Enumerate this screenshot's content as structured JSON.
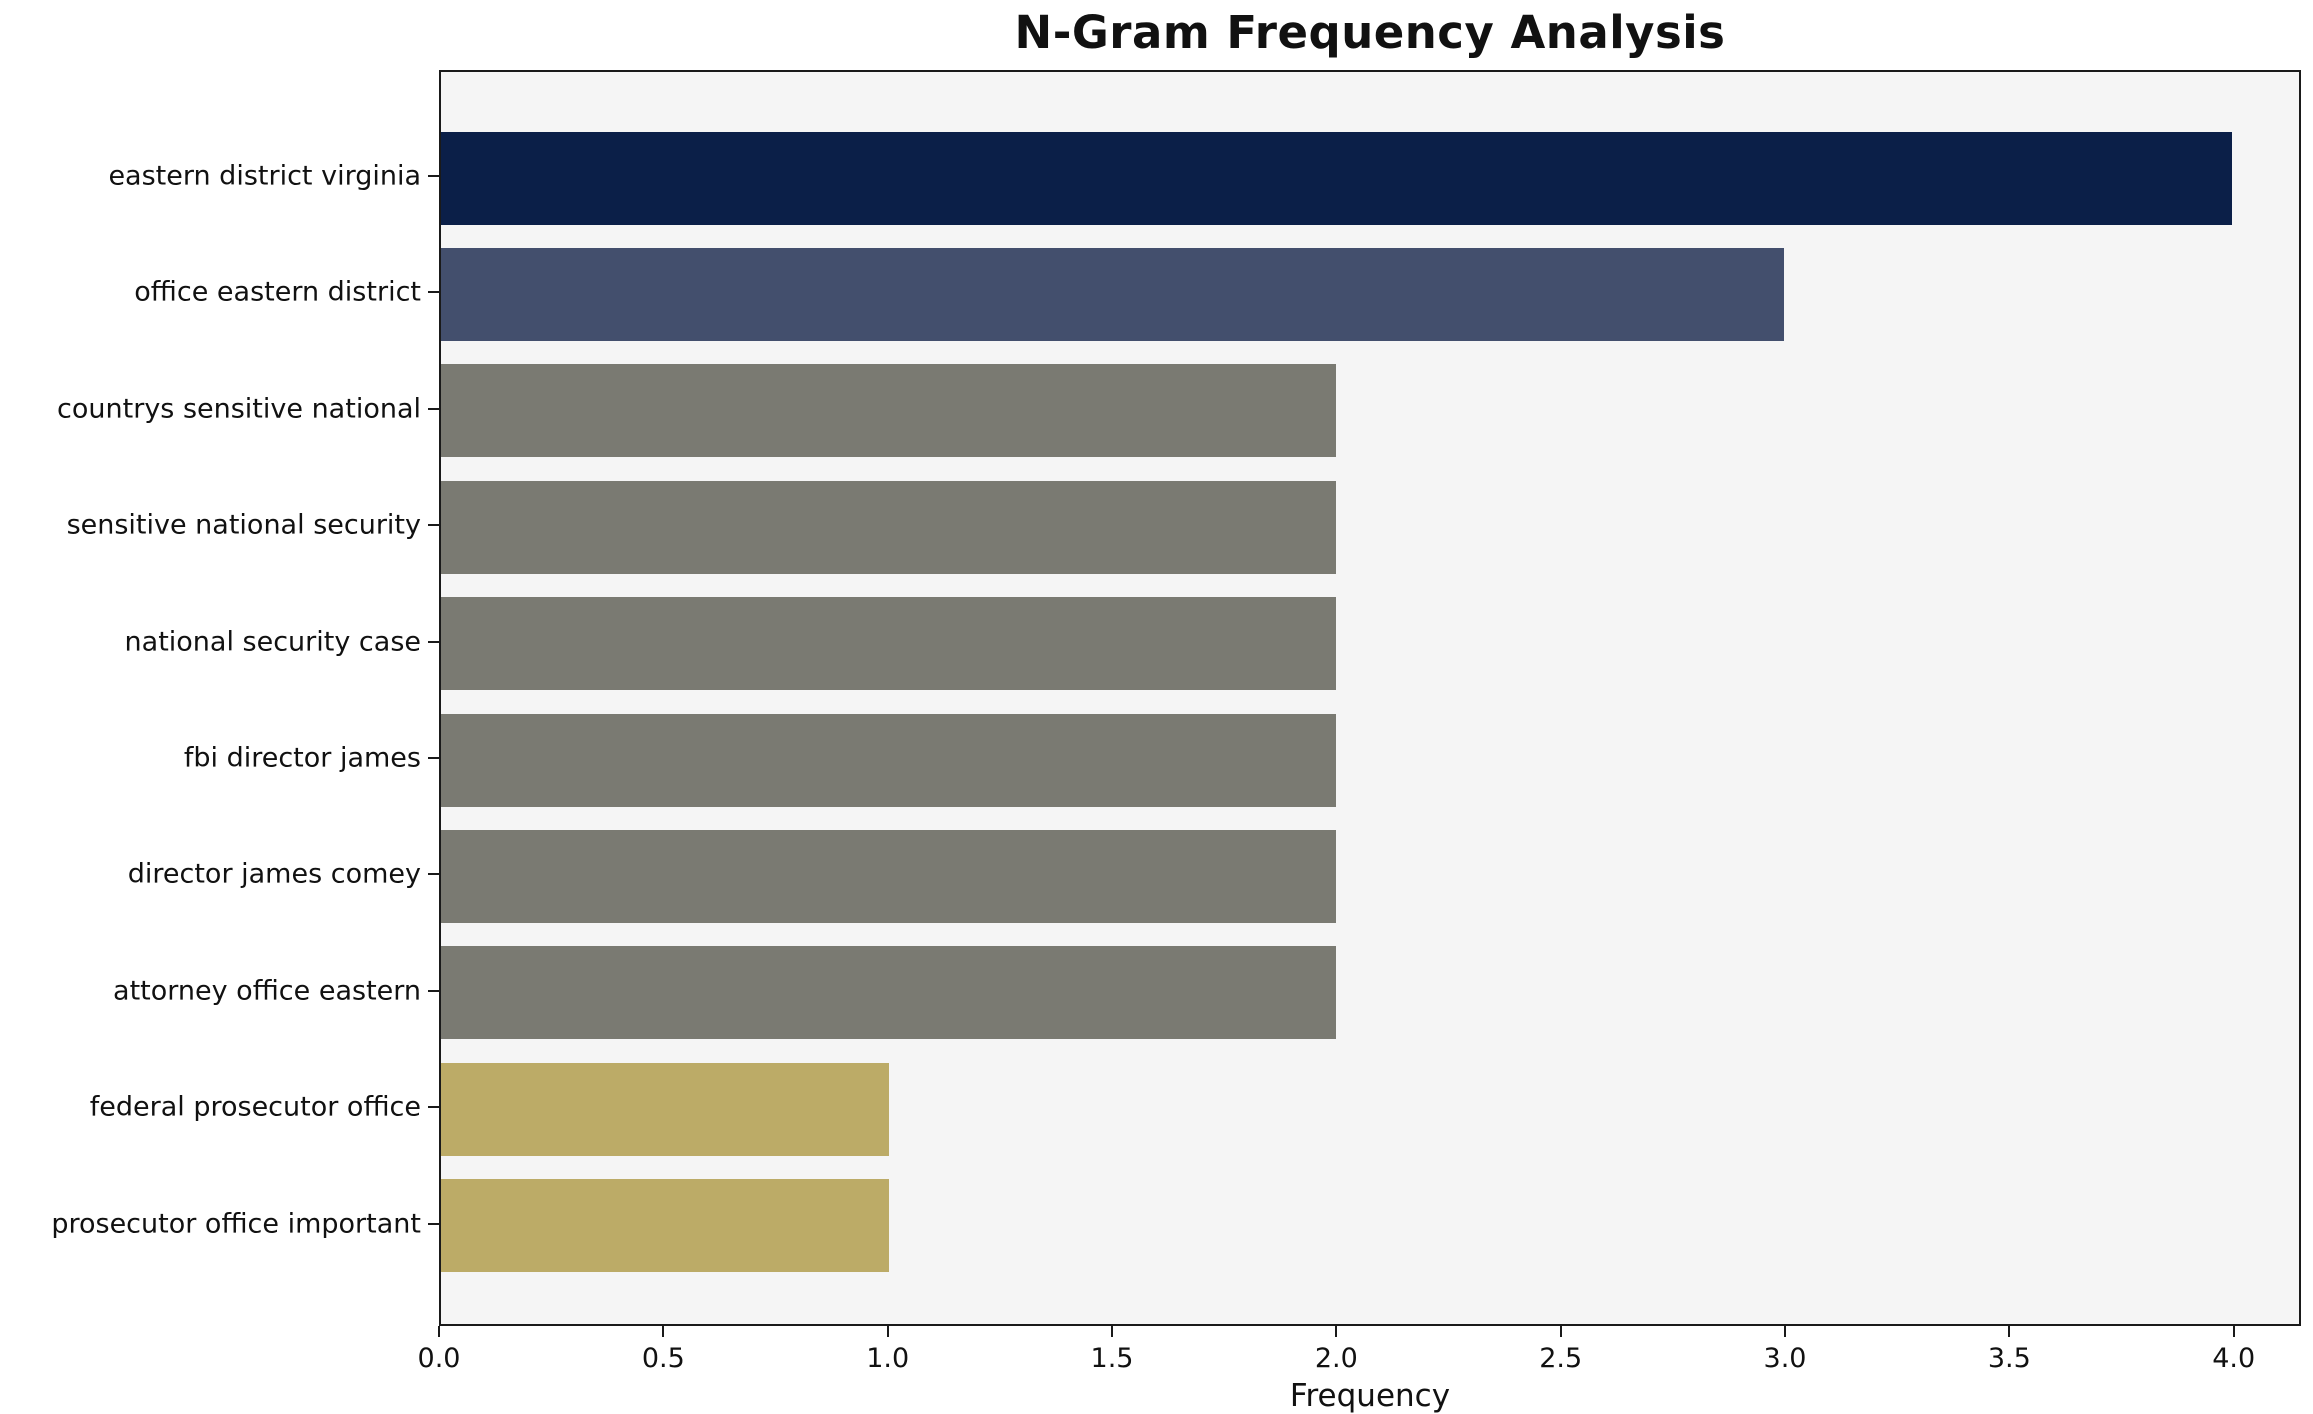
{
  "chart_data": {
    "type": "bar",
    "orientation": "horizontal",
    "title": "N-Gram Frequency Analysis",
    "xlabel": "Frequency",
    "ylabel": "",
    "categories": [
      "eastern district virginia",
      "office eastern district",
      "countrys sensitive national",
      "sensitive national security",
      "national security case",
      "fbi director james",
      "director james comey",
      "attorney office eastern",
      "federal prosecutor office",
      "prosecutor office important"
    ],
    "values": [
      4,
      3,
      2,
      2,
      2,
      2,
      2,
      2,
      1,
      1
    ],
    "bar_colors": [
      "#0b1f48",
      "#434f6d",
      "#7a7a72",
      "#7a7a72",
      "#7a7a72",
      "#7a7a72",
      "#7a7a72",
      "#7a7a72",
      "#bcab67",
      "#bcab67"
    ],
    "xlim": [
      0,
      4.15
    ],
    "xtick_labels": [
      "0.0",
      "0.5",
      "1.0",
      "1.5",
      "2.0",
      "2.5",
      "3.0",
      "3.5",
      "4.0"
    ],
    "plot_background": "#f5f5f5",
    "grid": false,
    "legend": false
  }
}
